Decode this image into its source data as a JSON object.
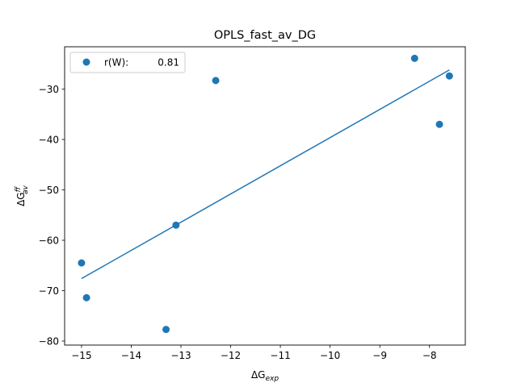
{
  "chart_data": {
    "type": "scatter",
    "title": "OPLS_fast_av_DG",
    "xlabel": {
      "main": "ΔG",
      "sub": "exp"
    },
    "ylabel": {
      "main": "ΔG",
      "sup": "ff",
      "sub": "av"
    },
    "xlim": [
      -15.34,
      -7.28
    ],
    "ylim": [
      -80.8,
      -21.6
    ],
    "xticks": [
      -15,
      -14,
      -13,
      -12,
      -11,
      -10,
      -9,
      -8
    ],
    "yticks": [
      -80,
      -70,
      -60,
      -50,
      -40,
      -30
    ],
    "xtick_labels": [
      "−15",
      "−14",
      "−13",
      "−12",
      "−11",
      "−10",
      "−9",
      "−8"
    ],
    "ytick_labels": [
      "−80",
      "−70",
      "−60",
      "−50",
      "−40",
      "−30"
    ],
    "grid": false,
    "legend_position": "upper-left",
    "legend": {
      "label": "r(W):",
      "value": "0.81"
    },
    "color": "#1f77b4",
    "points": [
      {
        "x": -15.0,
        "y": -64.5
      },
      {
        "x": -14.9,
        "y": -71.4
      },
      {
        "x": -13.3,
        "y": -77.7
      },
      {
        "x": -13.1,
        "y": -57.0
      },
      {
        "x": -12.3,
        "y": -28.3
      },
      {
        "x": -8.3,
        "y": -23.9
      },
      {
        "x": -7.8,
        "y": -37.0
      },
      {
        "x": -7.6,
        "y": -27.4
      }
    ],
    "fit_line": [
      {
        "x": -15.0,
        "y": -67.6
      },
      {
        "x": -7.6,
        "y": -26.2
      }
    ]
  }
}
